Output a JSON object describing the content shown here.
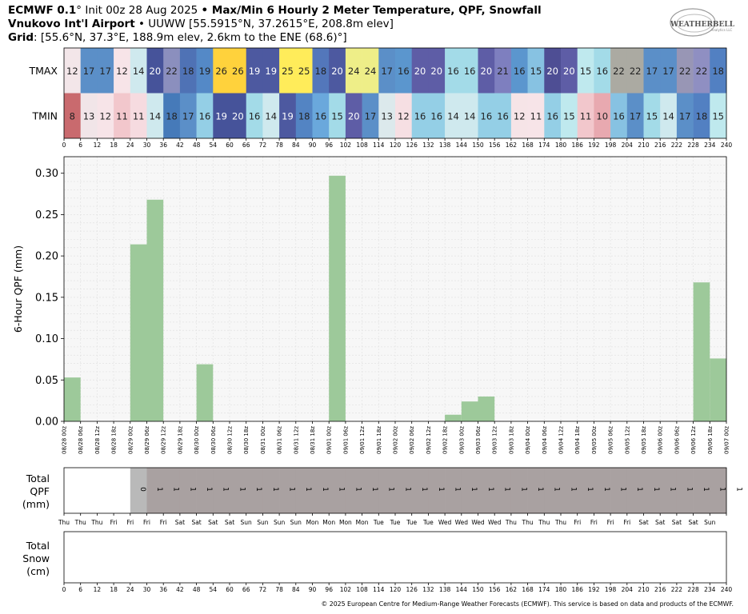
{
  "header": {
    "line1_bold": "ECMWF 0.1",
    "line1_deg": "°",
    "line1_init": " Init 00z 28 Aug 2025 ",
    "line1_bullet": "•",
    "line1_title": " Max/Min 6 Hourly 2 Meter Temperature,  QPF,  Snowfall",
    "line2_bold": "Vnukovo Int'l Airport",
    "line2_rest": " • UUWW [55.5915°N, 37.2615°E, 208.8m elev]",
    "line3_bold": "Grid",
    "line3_rest": ": [55.6°N, 37.3°E, 188.9m elev, 2.6km to the ENE (68.6)°]"
  },
  "logo": {
    "text": "WEATHERBELL",
    "sub": "Analytics LLC"
  },
  "footer": "© 2025 European Centre for Medium-Range Weather Forecasts (ECMWF). This service is based on data and products of the ECMWF.",
  "chart_data": [
    {
      "type": "heatmap",
      "rows": [
        "TMAX",
        "TMIN"
      ],
      "x_hours": [
        0,
        6,
        12,
        18,
        24,
        30,
        36,
        42,
        48,
        54,
        60,
        66,
        72,
        78,
        84,
        90,
        96,
        102,
        108,
        114,
        120,
        126,
        132,
        138,
        144,
        150,
        156,
        162,
        168,
        174,
        180,
        186,
        192,
        198,
        204,
        210,
        216,
        222,
        228,
        234,
        240
      ],
      "tmax": [
        12,
        17,
        17,
        12,
        14,
        20,
        22,
        18,
        19,
        26,
        26,
        19,
        19,
        25,
        25,
        18,
        20,
        24,
        24,
        17,
        16,
        20,
        20,
        16,
        16,
        20,
        21,
        16,
        15,
        20,
        20,
        15,
        16,
        22,
        22,
        17,
        17,
        22,
        22,
        18
      ],
      "tmin": [
        8,
        13,
        12,
        11,
        11,
        14,
        18,
        17,
        16,
        19,
        20,
        16,
        14,
        19,
        18,
        16,
        15,
        20,
        17,
        13,
        12,
        16,
        16,
        14,
        14,
        16,
        16,
        12,
        11,
        16,
        15,
        11,
        10,
        16,
        17,
        15,
        14,
        17,
        18,
        15
      ],
      "colors": {
        "tmax": [
          "#f3e6e9",
          "#5b8fc8",
          "#5b8fc8",
          "#f7e4e8",
          "#cfe9ee",
          "#46539a",
          "#8b8fbe",
          "#4f72b5",
          "#5489c7",
          "#ffd23c",
          "#ffd23c",
          "#4d59a0",
          "#4d59a0",
          "#ffec5a",
          "#ffec5a",
          "#5377bb",
          "#4d59a0",
          "#eeee88",
          "#eeee88",
          "#5b8fc8",
          "#5b96ce",
          "#5e5da6",
          "#5e5da6",
          "#a3dbe8",
          "#a3dbe8",
          "#5e5da6",
          "#7e7fbf",
          "#5b96ce",
          "#87c2e2",
          "#4e4e94",
          "#5e5da6",
          "#bfe9ee",
          "#a3dbe8",
          "#abaaa2",
          "#abaaa2",
          "#5b8fc8",
          "#5b8fc8",
          "#9896b5",
          "#8f8fc2",
          "#5280c2"
        ],
        "tmin": [
          "#c96a6e",
          "#f1e5e8",
          "#f7e4e8",
          "#f2c7cc",
          "#f6dbe0",
          "#cfe9ee",
          "#467ab9",
          "#5b8fc8",
          "#94cfe6",
          "#46539a",
          "#46539a",
          "#a3dbe8",
          "#cfe9ee",
          "#4d59a0",
          "#5384c3",
          "#6aa8dc",
          "#a3dbe8",
          "#5e5da6",
          "#5b8fc8",
          "#dce9ec",
          "#f6dfe3",
          "#94cfe6",
          "#94cfe6",
          "#cfe9ee",
          "#cfe9ee",
          "#94cfe6",
          "#94cfe6",
          "#f6e4e7",
          "#f7e4e8",
          "#94cfe6",
          "#bfe9ee",
          "#f2c7cc",
          "#e8a9b0",
          "#87c2e2",
          "#5b8fc8",
          "#a3dbe8",
          "#cfe9ee",
          "#5b8fc8",
          "#5280c2",
          "#bfe9ee"
        ]
      },
      "xtick_labels": [
        "0",
        "6",
        "12",
        "18",
        "24",
        "30",
        "36",
        "42",
        "48",
        "54",
        "60",
        "66",
        "72",
        "78",
        "84",
        "90",
        "96",
        "102",
        "108",
        "114",
        "120",
        "126",
        "132",
        "138",
        "144",
        "150",
        "156",
        "162",
        "168",
        "174",
        "180",
        "186",
        "192",
        "198",
        "204",
        "210",
        "216",
        "222",
        "228",
        "234",
        "240"
      ]
    },
    {
      "type": "bar",
      "ylabel": "6-Hour QPF (mm)",
      "ylim": [
        0,
        0.32
      ],
      "yticks": [
        "0.00",
        "0.05",
        "0.10",
        "0.15",
        "0.20",
        "0.25",
        "0.30"
      ],
      "grid": true,
      "categories": [
        "08/28 00z",
        "08/28 06z",
        "08/28 12z",
        "08/28 18z",
        "08/29 00z",
        "08/29 06z",
        "08/29 12z",
        "08/29 18z",
        "08/30 00z",
        "08/30 06z",
        "08/30 12z",
        "08/30 18z",
        "08/31 00z",
        "08/31 06z",
        "08/31 12z",
        "08/31 18z",
        "09/01 00z",
        "09/01 06z",
        "09/01 12z",
        "09/01 18z",
        "09/02 00z",
        "09/02 06z",
        "09/02 12z",
        "09/02 18z",
        "09/03 00z",
        "09/03 06z",
        "09/03 12z",
        "09/03 18z",
        "09/04 00z",
        "09/04 06z",
        "09/04 12z",
        "09/04 18z",
        "09/05 00z",
        "09/05 06z",
        "09/05 12z",
        "09/05 18z",
        "09/06 00z",
        "09/06 06z",
        "09/06 12z",
        "09/06 18z",
        "09/07 00z"
      ],
      "values": [
        0,
        0.053,
        0,
        0,
        0,
        0.214,
        0.268,
        0,
        0,
        0.069,
        0,
        0,
        0,
        0,
        0,
        0,
        0,
        0.297,
        0,
        0,
        0,
        0,
        0,
        0,
        0.008,
        0.024,
        0.03,
        0,
        0,
        0,
        0,
        0,
        0,
        0,
        0,
        0,
        0,
        0,
        0,
        0.168,
        0.076
      ],
      "color": "#9dc99a"
    },
    {
      "type": "bar",
      "ylabel_lines": [
        "Total",
        "QPF",
        "(mm)"
      ],
      "shaded_from_hour": 24,
      "first_shade_color": "#b9b9b9",
      "shade_color": "#a9a1a1",
      "values_labels": [
        "0",
        "1",
        "1",
        "1",
        "1",
        "1",
        "1",
        "1",
        "1",
        "1",
        "1",
        "1",
        "1",
        "1",
        "1",
        "1",
        "1",
        "1",
        "1",
        "1",
        "1",
        "1",
        "1",
        "1",
        "1",
        "1",
        "1",
        "1",
        "1",
        "1",
        "1",
        "1",
        "1",
        "1",
        "1",
        "1",
        "1"
      ],
      "day_labels": [
        "Thu",
        "Thu",
        "Thu",
        "Fri",
        "Fri",
        "Fri",
        "Fri",
        "Sat",
        "Sat",
        "Sat",
        "Sat",
        "Sun",
        "Sun",
        "Sun",
        "Sun",
        "Mon",
        "Mon",
        "Mon",
        "Mon",
        "Tue",
        "Tue",
        "Tue",
        "Tue",
        "Wed",
        "Wed",
        "Wed",
        "Wed",
        "Thu",
        "Thu",
        "Thu",
        "Thu",
        "Fri",
        "Fri",
        "Fri",
        "Fri",
        "Sat",
        "Sat",
        "Sat",
        "Sat",
        "Sun"
      ]
    },
    {
      "type": "bar",
      "ylabel_lines": [
        "Total",
        "Snow",
        "(cm)"
      ],
      "values": []
    }
  ]
}
